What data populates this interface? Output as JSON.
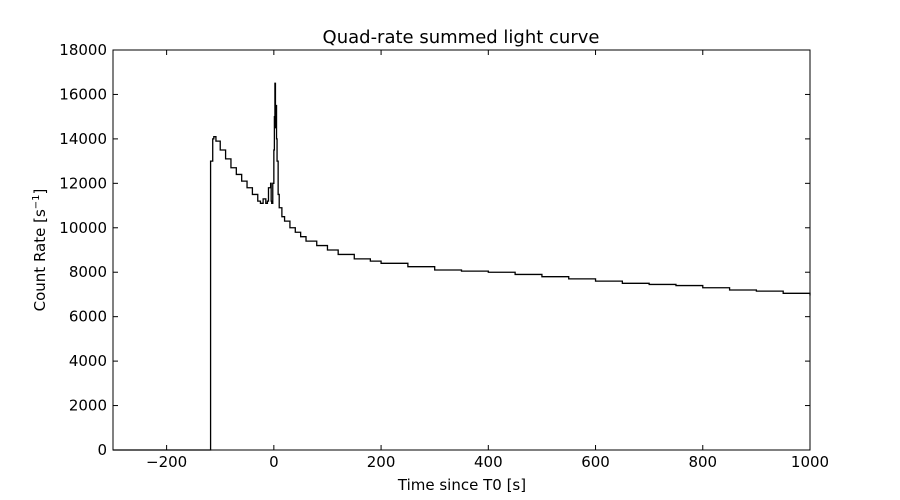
{
  "chart_data": {
    "type": "line",
    "title": "Quad-rate summed light curve",
    "xlabel": "Time since T0 [s]",
    "ylabel_main": "Count Rate [s",
    "ylabel_sup": "−1",
    "ylabel_end": "]",
    "xlim": [
      -300,
      1000
    ],
    "ylim": [
      0,
      18000
    ],
    "grid": false,
    "xticks": [
      -200,
      0,
      200,
      400,
      600,
      800,
      1000
    ],
    "xtick_labels": [
      "−200",
      "0",
      "200",
      "400",
      "600",
      "800",
      "1000"
    ],
    "yticks": [
      0,
      2000,
      4000,
      6000,
      8000,
      10000,
      12000,
      14000,
      16000,
      18000
    ],
    "ytick_labels": [
      "0",
      "2000",
      "4000",
      "6000",
      "8000",
      "10000",
      "12000",
      "14000",
      "16000",
      "18000"
    ],
    "line_color": "#000000",
    "series": [
      {
        "x": [
          -300,
          -118,
          -118,
          -114,
          -112,
          -108,
          -100,
          -90,
          -80,
          -70,
          -60,
          -50,
          -40,
          -30,
          -25,
          -20,
          -15,
          -12,
          -10,
          -6,
          -5,
          -4,
          -2,
          0,
          1,
          2,
          3,
          4,
          5,
          6,
          8,
          10,
          15,
          20,
          30,
          40,
          50,
          60,
          80,
          100,
          120,
          150,
          180,
          200,
          250,
          300,
          350,
          400,
          450,
          500,
          550,
          600,
          650,
          700,
          750,
          800,
          850,
          900,
          950,
          1000
        ],
        "y": [
          0,
          0,
          13000,
          14000,
          14100,
          13900,
          13500,
          13100,
          12700,
          12400,
          12100,
          11800,
          11500,
          11200,
          11100,
          11300,
          11100,
          11200,
          11800,
          12000,
          11200,
          11100,
          12000,
          13500,
          15000,
          16500,
          14500,
          15500,
          14000,
          13000,
          11500,
          10900,
          10500,
          10300,
          10000,
          9800,
          9600,
          9400,
          9200,
          9000,
          8800,
          8600,
          8500,
          8400,
          8250,
          8100,
          8050,
          8000,
          7900,
          7800,
          7700,
          7600,
          7500,
          7450,
          7400,
          7300,
          7200,
          7150,
          7050,
          6950
        ]
      }
    ]
  }
}
